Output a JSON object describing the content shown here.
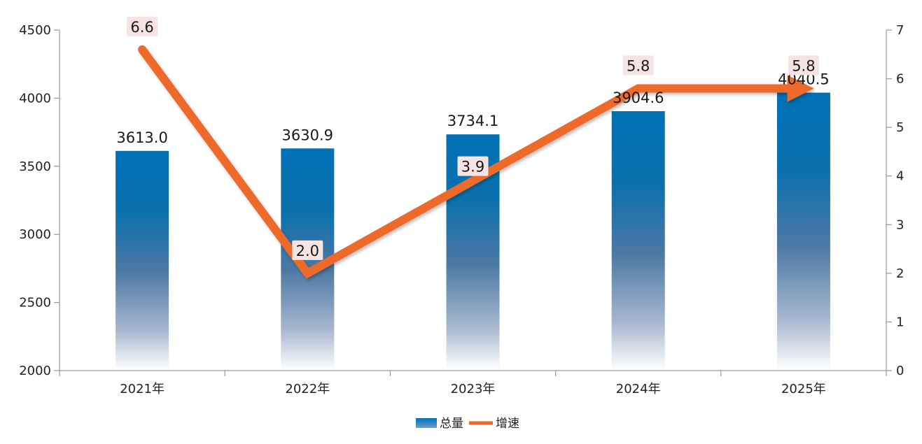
{
  "chart_data": {
    "type": "bar",
    "categories": [
      "2021年",
      "2022年",
      "2023年",
      "2024年",
      "2025年"
    ],
    "series": [
      {
        "name": "总量",
        "type": "bar",
        "axis": "left",
        "values": [
          3613.0,
          3630.9,
          3734.1,
          3904.6,
          4040.5
        ],
        "labels": [
          "3613.0",
          "3630.9",
          "3734.1",
          "3904.6",
          "4040.5"
        ],
        "color": "#0071b5"
      },
      {
        "name": "增速",
        "type": "line",
        "axis": "right",
        "values": [
          6.6,
          2.0,
          3.9,
          5.8,
          5.8
        ],
        "labels": [
          "6.6",
          "2.0",
          "3.9",
          "5.8",
          "5.8"
        ],
        "color": "#ee6a2c"
      }
    ],
    "y_left": {
      "min": 2000,
      "max": 4500,
      "ticks": [
        "2000",
        "2500",
        "3000",
        "3500",
        "4000",
        "4500"
      ]
    },
    "y_right": {
      "min": 0,
      "max": 7,
      "ticks": [
        "0",
        "1",
        "2",
        "3",
        "4",
        "5",
        "6",
        "7"
      ]
    },
    "legend_position": "bottom-center",
    "grid": false
  }
}
